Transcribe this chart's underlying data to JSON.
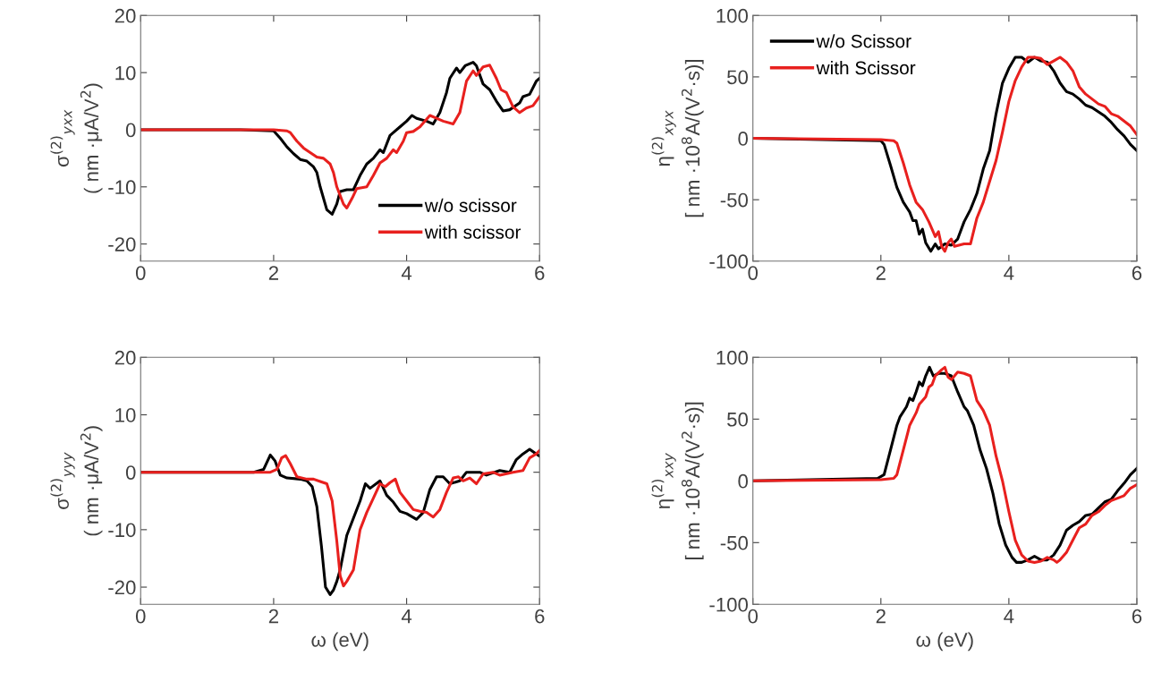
{
  "chart_data": [
    {
      "type": "line",
      "ylabel": "σ$^{(2)}$$_{yxx}$\n( nm ·μA/V$^{2}$)",
      "xlim": [
        0,
        6
      ],
      "xticks": [
        0,
        2,
        4,
        6
      ],
      "ylim": [
        -23,
        20
      ],
      "yticks": [
        -20,
        -10,
        0,
        10,
        20
      ],
      "legend": "bottom right",
      "grid": false,
      "tick_labels": true,
      "series": [
        {
          "name": "w/o scissor",
          "color": "#000000",
          "x": [
            0,
            1.5,
            2.0,
            2.1,
            2.2,
            2.3,
            2.4,
            2.5,
            2.6,
            2.65,
            2.7,
            2.8,
            2.88,
            2.95,
            3.0,
            3.1,
            3.2,
            3.3,
            3.4,
            3.5,
            3.6,
            3.65,
            3.75,
            3.8,
            3.9,
            4.0,
            4.08,
            4.15,
            4.3,
            4.4,
            4.5,
            4.6,
            4.65,
            4.75,
            4.8,
            4.88,
            5.0,
            5.05,
            5.15,
            5.25,
            5.35,
            5.45,
            5.55,
            5.7,
            5.75,
            5.85,
            5.95,
            6.0
          ],
          "values": [
            0,
            0,
            -0.2,
            -1.5,
            -3,
            -4.2,
            -5.2,
            -5.5,
            -6.5,
            -7.5,
            -10,
            -14,
            -14.8,
            -13,
            -10.8,
            -10.5,
            -10.5,
            -8,
            -6,
            -5,
            -3.5,
            -4,
            -1,
            -0.5,
            0.5,
            1.5,
            2.5,
            2,
            1.5,
            1,
            3,
            6.5,
            9,
            10.8,
            10,
            11.2,
            11.8,
            11.2,
            8,
            7,
            5,
            3.3,
            3.5,
            4.7,
            5.8,
            6.2,
            8.5,
            9
          ]
        },
        {
          "name": "with scissor",
          "color": "#e8201e",
          "x": [
            0,
            2.0,
            2.2,
            2.25,
            2.35,
            2.45,
            2.55,
            2.65,
            2.75,
            2.85,
            2.9,
            2.95,
            3.05,
            3.1,
            3.18,
            3.25,
            3.4,
            3.5,
            3.6,
            3.7,
            3.8,
            3.85,
            3.95,
            4.0,
            4.1,
            4.2,
            4.35,
            4.45,
            4.55,
            4.7,
            4.8,
            4.9,
            5.0,
            5.05,
            5.15,
            5.25,
            5.35,
            5.42,
            5.5,
            5.6,
            5.7,
            5.8,
            5.9,
            6.0
          ],
          "values": [
            0,
            0,
            -0.2,
            -0.5,
            -2,
            -3.2,
            -4,
            -4.8,
            -5,
            -6,
            -7.5,
            -10,
            -13,
            -13.7,
            -12,
            -10.3,
            -10,
            -8,
            -5.8,
            -5,
            -3.5,
            -4,
            -2,
            -0.5,
            -0.3,
            0.5,
            2.5,
            2,
            1.5,
            1,
            3,
            8.5,
            10.3,
            9.5,
            11,
            11.3,
            9,
            7,
            6.5,
            4,
            3,
            3.8,
            4.2,
            5.8
          ]
        }
      ]
    },
    {
      "type": "line",
      "ylabel": "η$^{(2)}$$_{xyx}$\n[ nm ·10$^{8}$A/(V$^{2}$·s)]",
      "xlim": [
        0,
        6
      ],
      "xticks": [
        0,
        2,
        4,
        6
      ],
      "ylim": [
        -100,
        100
      ],
      "yticks": [
        -100,
        -50,
        0,
        50,
        100
      ],
      "legend": "top left",
      "grid": false,
      "tick_labels": true,
      "series": [
        {
          "name": "w/o Scissor",
          "color": "#000000",
          "x": [
            0,
            2.0,
            2.05,
            2.15,
            2.25,
            2.35,
            2.45,
            2.5,
            2.55,
            2.6,
            2.65,
            2.7,
            2.78,
            2.85,
            2.9,
            3.0,
            3.1,
            3.2,
            3.3,
            3.4,
            3.5,
            3.6,
            3.7,
            3.8,
            3.9,
            4.0,
            4.1,
            4.2,
            4.3,
            4.4,
            4.5,
            4.6,
            4.7,
            4.8,
            4.9,
            5.0,
            5.1,
            5.2,
            5.3,
            5.5,
            5.6,
            5.7,
            5.8,
            5.9,
            6.0
          ],
          "values": [
            0,
            -2,
            -5,
            -22,
            -40,
            -52,
            -60,
            -67,
            -67,
            -78,
            -74,
            -85,
            -92,
            -86,
            -90,
            -86,
            -87,
            -82,
            -68,
            -58,
            -45,
            -25,
            -10,
            20,
            45,
            57,
            66,
            66,
            62,
            66,
            63,
            62,
            55,
            45,
            38,
            36,
            32,
            27,
            25,
            18,
            13,
            7,
            2,
            -5,
            -10
          ]
        },
        {
          "name": "with Scissor",
          "color": "#e8201e",
          "x": [
            0,
            2.0,
            2.2,
            2.25,
            2.35,
            2.45,
            2.55,
            2.65,
            2.75,
            2.85,
            2.9,
            2.95,
            3.0,
            3.05,
            3.1,
            3.15,
            3.3,
            3.4,
            3.5,
            3.6,
            3.7,
            3.8,
            3.9,
            4.0,
            4.1,
            4.2,
            4.3,
            4.4,
            4.5,
            4.6,
            4.7,
            4.8,
            4.9,
            5.0,
            5.1,
            5.2,
            5.3,
            5.4,
            5.5,
            5.6,
            5.7,
            5.8,
            5.9,
            6.0
          ],
          "values": [
            0,
            -1,
            -2,
            -4,
            -20,
            -38,
            -52,
            -58,
            -68,
            -80,
            -76,
            -88,
            -92,
            -85,
            -82,
            -88,
            -86,
            -86,
            -65,
            -52,
            -35,
            -18,
            5,
            30,
            47,
            58,
            66,
            66,
            65,
            60,
            63,
            66,
            62,
            55,
            42,
            36,
            32,
            28,
            26,
            20,
            18,
            14,
            10,
            3
          ]
        }
      ]
    },
    {
      "type": "line",
      "xlabel": "ω (eV)",
      "ylabel": "σ$^{(2)}$$_{yyy}$\n( nm ·μA/V$^{2}$)",
      "xlim": [
        0,
        6
      ],
      "xticks": [
        0,
        2,
        4,
        6
      ],
      "ylim": [
        -23,
        20
      ],
      "yticks": [
        -20,
        -10,
        0,
        10,
        20
      ],
      "legend": false,
      "grid": false,
      "tick_labels": true,
      "series": [
        {
          "color": "#000000",
          "x": [
            0,
            1.7,
            1.85,
            1.95,
            2.02,
            2.1,
            2.2,
            2.4,
            2.5,
            2.58,
            2.65,
            2.72,
            2.78,
            2.85,
            2.9,
            2.95,
            3.0,
            3.1,
            3.2,
            3.3,
            3.38,
            3.45,
            3.6,
            3.7,
            3.8,
            3.9,
            4.0,
            4.15,
            4.25,
            4.35,
            4.45,
            4.55,
            4.65,
            4.8,
            4.9,
            5.1,
            5.2,
            5.4,
            5.55,
            5.65,
            5.75,
            5.85,
            5.95,
            6.0
          ],
          "values": [
            0,
            0,
            0.5,
            3,
            2,
            -0.5,
            -1,
            -1.2,
            -1.5,
            -2.5,
            -6,
            -13,
            -20,
            -21.3,
            -20.5,
            -19,
            -17,
            -11,
            -8,
            -5,
            -2,
            -2.8,
            -1.5,
            -4,
            -5.2,
            -6.8,
            -7.2,
            -8.2,
            -7,
            -3,
            -0.8,
            -0.8,
            -2,
            -1.5,
            0,
            0,
            -0.5,
            0.3,
            0,
            2.2,
            3.2,
            4,
            3.2,
            2.8
          ]
        },
        {
          "color": "#e8201e",
          "x": [
            0,
            1.95,
            2.05,
            2.12,
            2.18,
            2.25,
            2.35,
            2.5,
            2.6,
            2.7,
            2.8,
            2.88,
            2.95,
            3.0,
            3.05,
            3.1,
            3.2,
            3.3,
            3.4,
            3.5,
            3.6,
            3.68,
            3.75,
            3.83,
            3.9,
            4.0,
            4.1,
            4.2,
            4.3,
            4.4,
            4.5,
            4.6,
            4.7,
            4.78,
            4.85,
            4.95,
            5.05,
            5.15,
            5.3,
            5.4,
            5.6,
            5.75,
            5.85,
            5.95,
            6.0
          ],
          "values": [
            0,
            0,
            0.5,
            2.5,
            2.9,
            1.5,
            -0.8,
            -1.2,
            -1.2,
            -1.6,
            -2,
            -5,
            -12,
            -18,
            -19.8,
            -19,
            -17,
            -10,
            -7,
            -4.5,
            -2,
            -2.5,
            -1.8,
            -1.2,
            -3.5,
            -5,
            -6.5,
            -6.8,
            -7,
            -7.8,
            -6.5,
            -3.5,
            -1,
            -0.8,
            -1.5,
            -1,
            -2,
            -0.3,
            0,
            -0.5,
            0,
            0.3,
            2.5,
            3.2,
            3.8
          ]
        }
      ]
    },
    {
      "type": "line",
      "xlabel": "ω (eV)",
      "ylabel": "η$^{(2)}$$_{xxy}$\n[ nm ·10$^{8}$A/(V$^{2}$·s)]",
      "xlim": [
        0,
        6
      ],
      "xticks": [
        0,
        2,
        4,
        6
      ],
      "ylim": [
        -100,
        100
      ],
      "yticks": [
        -100,
        -50,
        0,
        50,
        100
      ],
      "legend": false,
      "grid": false,
      "tick_labels": true,
      "series": [
        {
          "color": "#000000",
          "x": [
            0,
            1.95,
            2.05,
            2.15,
            2.25,
            2.3,
            2.4,
            2.45,
            2.5,
            2.55,
            2.6,
            2.65,
            2.7,
            2.76,
            2.82,
            2.9,
            3.0,
            3.1,
            3.2,
            3.3,
            3.35,
            3.45,
            3.55,
            3.65,
            3.75,
            3.85,
            3.95,
            4.05,
            4.12,
            4.2,
            4.3,
            4.4,
            4.5,
            4.6,
            4.7,
            4.8,
            4.9,
            5.0,
            5.1,
            5.2,
            5.3,
            5.4,
            5.5,
            5.6,
            5.7,
            5.8,
            5.9,
            6.0
          ],
          "values": [
            0,
            2,
            5,
            25,
            45,
            52,
            60,
            67,
            65,
            72,
            80,
            77,
            85,
            92,
            85,
            87,
            87,
            85,
            72,
            60,
            57,
            45,
            25,
            10,
            -10,
            -35,
            -52,
            -62,
            -66,
            -66,
            -64,
            -61,
            -64,
            -64,
            -60,
            -52,
            -40,
            -36,
            -33,
            -28,
            -27,
            -22,
            -17,
            -15,
            -8,
            -2,
            5,
            10
          ]
        },
        {
          "color": "#e8201e",
          "x": [
            0,
            2.0,
            2.2,
            2.25,
            2.35,
            2.45,
            2.55,
            2.6,
            2.7,
            2.75,
            2.8,
            2.85,
            2.95,
            3.0,
            3.05,
            3.1,
            3.2,
            3.3,
            3.4,
            3.5,
            3.6,
            3.7,
            3.8,
            3.9,
            4.0,
            4.1,
            4.2,
            4.3,
            4.4,
            4.5,
            4.6,
            4.7,
            4.75,
            4.8,
            4.9,
            5.0,
            5.1,
            5.2,
            5.3,
            5.4,
            5.5,
            5.6,
            5.7,
            5.8,
            5.9,
            6.0
          ],
          "values": [
            0,
            1,
            2,
            5,
            25,
            45,
            55,
            62,
            68,
            76,
            78,
            85,
            90,
            92,
            84,
            82,
            88,
            87,
            85,
            65,
            57,
            45,
            20,
            0,
            -25,
            -48,
            -60,
            -65,
            -66,
            -65,
            -62,
            -64,
            -66,
            -64,
            -58,
            -48,
            -38,
            -35,
            -28,
            -25,
            -20,
            -16,
            -14,
            -12,
            -6,
            -3
          ]
        }
      ]
    }
  ]
}
